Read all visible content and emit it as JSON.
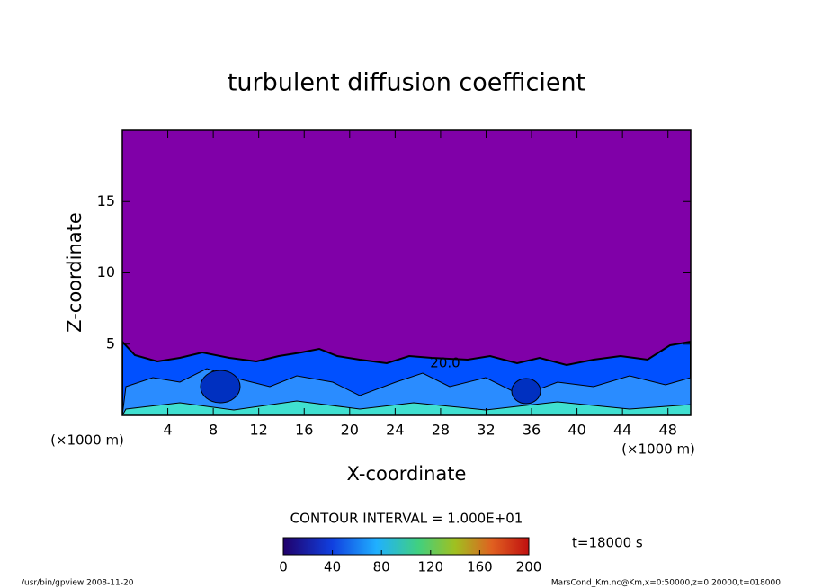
{
  "chart_data": {
    "type": "contour",
    "title": "turbulent diffusion coefficient",
    "x_label": "X-coordinate",
    "y_label": "Z-coordinate",
    "x_unit": "(×1000 m)",
    "y_unit": "(×1000 m)",
    "xlim": [
      0,
      50
    ],
    "xticks": [
      4,
      8,
      12,
      16,
      20,
      24,
      28,
      32,
      36,
      40,
      44,
      48
    ],
    "ylim": [
      0,
      20
    ],
    "yticks": [
      5,
      10,
      15
    ],
    "contour_label": "20.0",
    "contour_interval": "CONTOUR INTERVAL = 1.000E+01",
    "colorbar_lim": [
      0,
      200
    ],
    "colorbar_ticks": [
      0,
      40,
      80,
      120,
      160,
      200
    ],
    "time_label": "t=18000 s",
    "footer_left": "/usr/bin/gpview  2008-11-20",
    "footer_right": "MarsCond_Km.nc@Km,x=0:50000,z=0:20000,t=018000"
  }
}
